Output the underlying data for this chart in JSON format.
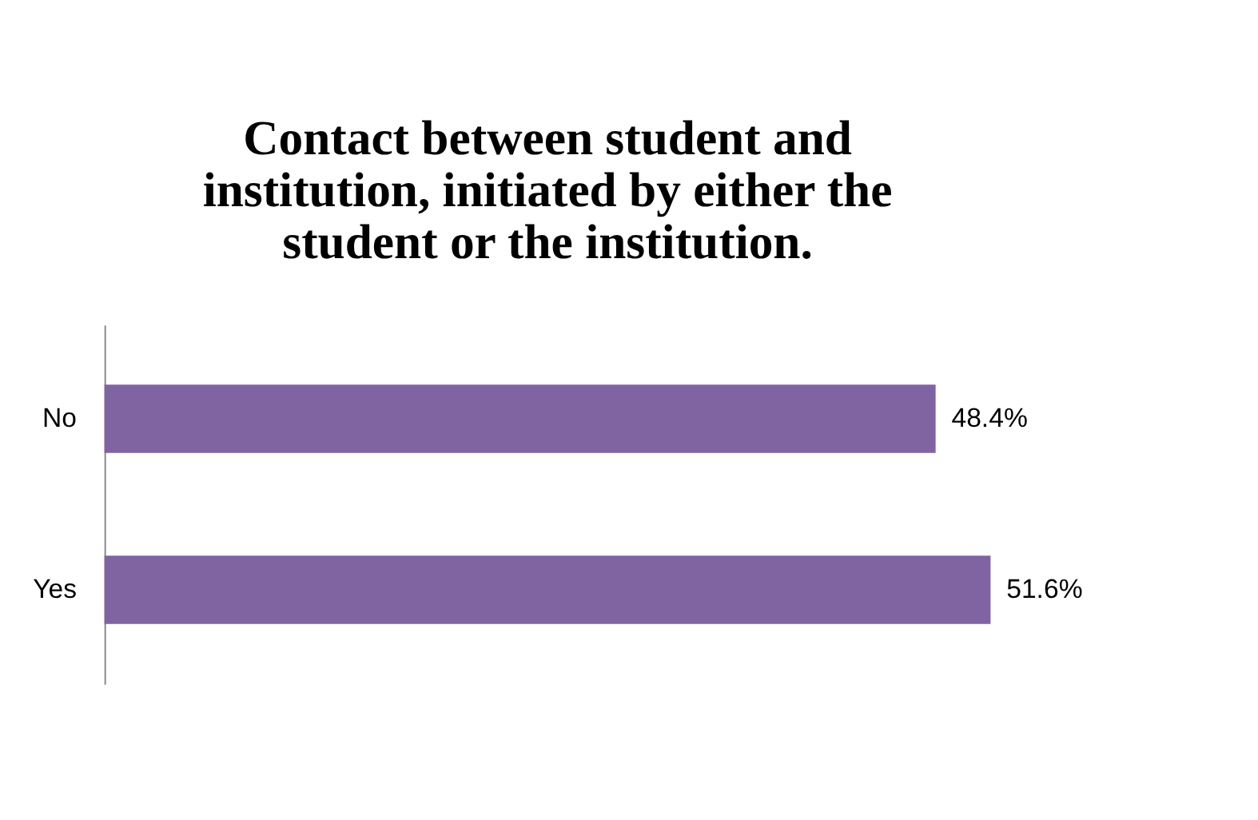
{
  "chart_data": {
    "type": "bar",
    "orientation": "horizontal",
    "title": [
      "Contact between student and",
      "institution, initiated by either the",
      "student or the institution."
    ],
    "categories": [
      "No",
      "Yes"
    ],
    "values": [
      48.4,
      51.6
    ],
    "value_labels": [
      "48.4%",
      "51.6%"
    ],
    "color": "#8064a2",
    "tick_labels": "y"
  }
}
